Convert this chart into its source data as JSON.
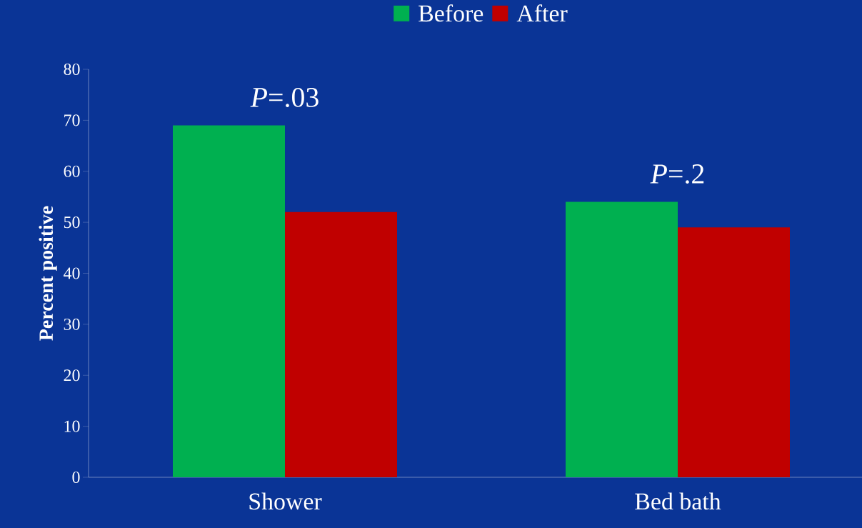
{
  "chart_data": {
    "type": "bar",
    "categories": [
      "Shower",
      "Bed bath"
    ],
    "series": [
      {
        "name": "Before",
        "color": "#00b050",
        "values": [
          69,
          54
        ]
      },
      {
        "name": "After",
        "color": "#c00000",
        "values": [
          52,
          49
        ]
      }
    ],
    "ylabel": "Percent positive",
    "ylim": [
      0,
      80
    ],
    "yticks": [
      0,
      10,
      20,
      30,
      40,
      50,
      60,
      70,
      80
    ],
    "annotations": [
      "*P*=.03",
      "*P*=.2"
    ],
    "legend": "top",
    "grid": false
  }
}
